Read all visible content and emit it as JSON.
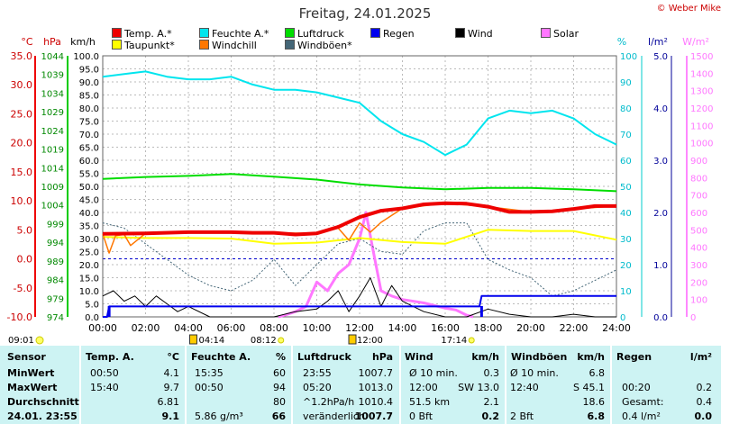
{
  "title": "Freitag, 24.01.2025",
  "copyright": "© Weber Mike",
  "legend": [
    {
      "label": "Temp. A.*",
      "color": "#ee0000",
      "col": 0,
      "row": 0
    },
    {
      "label": "Feuchte A.*",
      "color": "#00e5ee",
      "col": 1,
      "row": 0
    },
    {
      "label": "Luftdruck",
      "color": "#00dd00",
      "col": 2,
      "row": 0
    },
    {
      "label": "Regen",
      "color": "#0000ee",
      "col": 3,
      "row": 0
    },
    {
      "label": "Wind",
      "color": "#000000",
      "col": 4,
      "row": 0
    },
    {
      "label": "Solar",
      "color": "#ff77ff",
      "col": 5,
      "row": 0
    },
    {
      "label": "Taupunkt*",
      "color": "#ffff00",
      "col": 0,
      "row": 1
    },
    {
      "label": "Windchill",
      "color": "#ff7700",
      "col": 1,
      "row": 1
    },
    {
      "label": "Windböen*",
      "color": "#446677",
      "col": 2,
      "row": 1
    }
  ],
  "axis_units": {
    "temp": "°C",
    "press": "hPa",
    "wind": "km/h",
    "hum": "%",
    "rain": "l/m²",
    "solar": "W/m²"
  },
  "axis_ticks": {
    "temp": [
      "35.0",
      "30.0",
      "25.0",
      "20.0",
      "15.0",
      "10.0",
      "5.0",
      "0.0",
      "-5.0",
      "-10.0"
    ],
    "press": [
      "1044",
      "1039",
      "1034",
      "1029",
      "1024",
      "1019",
      "1014",
      "1009",
      "1004",
      "999",
      "994",
      "989",
      "984",
      "979",
      "974"
    ],
    "wind": [
      "100.0",
      "95.0",
      "90.0",
      "85.0",
      "80.0",
      "75.0",
      "70.0",
      "65.0",
      "60.0",
      "55.0",
      "50.0",
      "45.0",
      "40.0",
      "35.0",
      "30.0",
      "25.0",
      "20.0",
      "15.0",
      "10.0",
      "5.0",
      "0.0"
    ],
    "hum": [
      "100",
      "90",
      "80",
      "70",
      "60",
      "50",
      "40",
      "30",
      "20",
      "10",
      "0"
    ],
    "rain": [
      "5.0",
      "4.0",
      "3.0",
      "2.0",
      "1.0",
      "0.0"
    ],
    "solar": [
      "1500",
      "1400",
      "1300",
      "1200",
      "1100",
      "1000",
      "900",
      "800",
      "700",
      "600",
      "500",
      "400",
      "300",
      "200",
      "100",
      "0"
    ],
    "time": [
      "00:00",
      "02:00",
      "04:00",
      "06:00",
      "08:00",
      "10:00",
      "12:00",
      "14:00",
      "16:00",
      "18:00",
      "20:00",
      "22:00",
      "24:00"
    ]
  },
  "sun_times": {
    "sunrise_label": "09:01",
    "moon1": "04:14",
    "sun1": "08:12",
    "moon2": "12:00",
    "sun2": "17:14"
  },
  "chart_data": {
    "type": "line",
    "x_unit": "h",
    "xlim": [
      0,
      24
    ],
    "series": [
      {
        "name": "Temp. A.*",
        "axis": "temp",
        "color": "#ee0000",
        "x": [
          0,
          2,
          4,
          6,
          7,
          8,
          9,
          10,
          11,
          12,
          13,
          14,
          15,
          16,
          17,
          18,
          19,
          20,
          21,
          22,
          23,
          24
        ],
        "y": [
          4.3,
          4.4,
          4.6,
          4.6,
          4.5,
          4.5,
          4.2,
          4.4,
          5.5,
          7.2,
          8.3,
          8.7,
          9.4,
          9.6,
          9.5,
          9.0,
          8.1,
          8.1,
          8.2,
          8.6,
          9.1,
          9.1
        ]
      },
      {
        "name": "Feuchte A.*",
        "axis": "hum",
        "color": "#00e5ee",
        "x": [
          0,
          1,
          2,
          3,
          4,
          5,
          6,
          7,
          8,
          9,
          10,
          11,
          12,
          13,
          14,
          15,
          16,
          17,
          18,
          19,
          20,
          21,
          22,
          23,
          24
        ],
        "y": [
          92,
          93,
          94,
          92,
          91,
          91,
          92,
          89,
          87,
          87,
          86,
          84,
          82,
          75,
          70,
          67,
          62,
          66,
          76,
          79,
          78,
          79,
          76,
          70,
          66
        ]
      },
      {
        "name": "Luftdruck",
        "axis": "press",
        "color": "#00dd00",
        "x": [
          0,
          2,
          4,
          6,
          8,
          10,
          12,
          14,
          16,
          18,
          20,
          22,
          24
        ],
        "y": [
          1011.0,
          1011.5,
          1011.8,
          1012.3,
          1011.6,
          1010.8,
          1009.5,
          1008.7,
          1008.2,
          1008.6,
          1008.6,
          1008.2,
          1007.7
        ]
      },
      {
        "name": "Taupunkt*",
        "axis": "temp",
        "color": "#ffff00",
        "x": [
          0,
          2,
          4,
          6,
          8,
          10,
          12,
          14,
          16,
          18,
          20,
          22,
          24
        ],
        "y": [
          3.8,
          3.6,
          3.6,
          3.5,
          2.6,
          2.8,
          3.6,
          2.9,
          2.6,
          5.0,
          4.8,
          4.8,
          3.3
        ]
      },
      {
        "name": "Windchill",
        "axis": "temp",
        "color": "#ff7700",
        "x": [
          0,
          0.3,
          0.6,
          1,
          1.3,
          2,
          3,
          4,
          6,
          8,
          10,
          11,
          11.5,
          12,
          12.5,
          13,
          14,
          16,
          18,
          20,
          22,
          24
        ],
        "y": [
          4.3,
          1.0,
          4.0,
          4.2,
          2.3,
          4.4,
          4.5,
          4.6,
          4.6,
          4.5,
          4.4,
          5.3,
          3.2,
          6.2,
          4.6,
          6.3,
          8.7,
          9.6,
          9.0,
          8.1,
          8.6,
          9.1
        ]
      },
      {
        "name": "Windböen*",
        "axis": "wind",
        "color": "#446677",
        "x": [
          0,
          1,
          2,
          3,
          4,
          5,
          6,
          7,
          8,
          9,
          10,
          11,
          12,
          13,
          14,
          15,
          16,
          17,
          18,
          19,
          20,
          21,
          22,
          23,
          24
        ],
        "y": [
          36,
          34,
          28,
          22,
          16,
          12,
          10,
          14,
          22,
          12,
          20,
          28,
          30,
          25,
          24,
          33,
          36,
          36,
          22,
          18,
          15,
          8,
          10,
          14,
          18
        ]
      },
      {
        "name": "Wind",
        "axis": "wind",
        "color": "#000000",
        "x": [
          0,
          0.5,
          1,
          1.5,
          2,
          2.5,
          3,
          3.5,
          4,
          5,
          6,
          8,
          9,
          10,
          10.5,
          11,
          11.5,
          12,
          12.5,
          13,
          13.5,
          14,
          15,
          16,
          17,
          18,
          19,
          20,
          21,
          22,
          23,
          24
        ],
        "y": [
          8,
          10,
          6,
          8,
          4,
          8,
          5,
          2,
          4,
          0,
          0,
          0,
          2,
          3,
          6,
          10,
          2,
          8,
          15,
          4,
          12,
          6,
          2,
          0,
          0,
          3,
          1,
          0,
          0,
          1,
          0,
          0
        ]
      },
      {
        "name": "Solar",
        "axis": "solar",
        "color": "#ff77ff",
        "x": [
          8.2,
          8.5,
          9,
          9.5,
          10,
          10.5,
          11,
          11.5,
          12,
          12.3,
          12.6,
          13,
          13.5,
          14,
          15,
          16,
          16.5,
          17,
          17.3
        ],
        "y": [
          0,
          10,
          30,
          60,
          200,
          150,
          250,
          300,
          450,
          600,
          400,
          150,
          120,
          100,
          80,
          50,
          40,
          10,
          0
        ]
      },
      {
        "name": "Regen",
        "axis": "rain",
        "color": "#0000ee",
        "x": [
          0,
          0.2,
          0.3,
          17.6,
          17.7,
          24
        ],
        "y": [
          0,
          0,
          0.2,
          0.2,
          0.4,
          0.4
        ]
      }
    ]
  },
  "stats": {
    "headers": {
      "sensor": "Sensor",
      "temp": "Temp. A.",
      "temp_unit": "°C",
      "hum": "Feuchte A.",
      "hum_unit": "%",
      "press": "Luftdruck",
      "press_unit": "hPa",
      "wind": "Wind",
      "wind_unit": "km/h",
      "gust": "Windböen",
      "gust_unit": "km/h",
      "rain": "Regen",
      "rain_unit": "l/m²"
    },
    "rows": [
      {
        "label": "MinWert",
        "temp_t": "00:50",
        "temp_v": "4.1",
        "hum_t": "15:35",
        "hum_v": "60",
        "press_t": "23:55",
        "press_v": "1007.7",
        "wind_t": "Ø 10 min.",
        "wind_v": "0.3",
        "gust_t": "Ø 10 min.",
        "gust_v": "6.8",
        "rain_t": "",
        "rain_v": ""
      },
      {
        "label": "MaxWert",
        "temp_t": "15:40",
        "temp_v": "9.7",
        "hum_t": "00:50",
        "hum_v": "94",
        "press_t": "05:20",
        "press_v": "1013.0",
        "wind_t": "12:00",
        "wind_d": "SW 13.0",
        "wind_v": "",
        "gust_t": "12:40",
        "gust_d": "S 45.1",
        "gust_v": "",
        "rain_t": "00:20",
        "rain_v": "0.2"
      },
      {
        "label": "Durchschnitt",
        "temp_t": "",
        "temp_v": "6.81",
        "hum_t": "",
        "hum_v": "80",
        "press_t": "^1.2hPa/h",
        "press_v": "1010.4",
        "wind_t": "51.5 km",
        "wind_v": "2.1",
        "gust_t": "",
        "gust_v": "18.6",
        "rain_t": "Gesamt:",
        "rain_v": "0.4"
      },
      {
        "label": "24.01. 23:55",
        "temp_t": "",
        "temp_v": "9.1",
        "hum_t": "5.86 g/m³",
        "hum_v": "66",
        "press_t": "veränderlich",
        "press_v": "1007.7",
        "wind_t": "0 Bft",
        "wind_v": "0.2",
        "gust_t": "2 Bft",
        "gust_v": "6.8",
        "rain_t": "0.4 l/m²",
        "rain_v": "0.0"
      }
    ]
  }
}
